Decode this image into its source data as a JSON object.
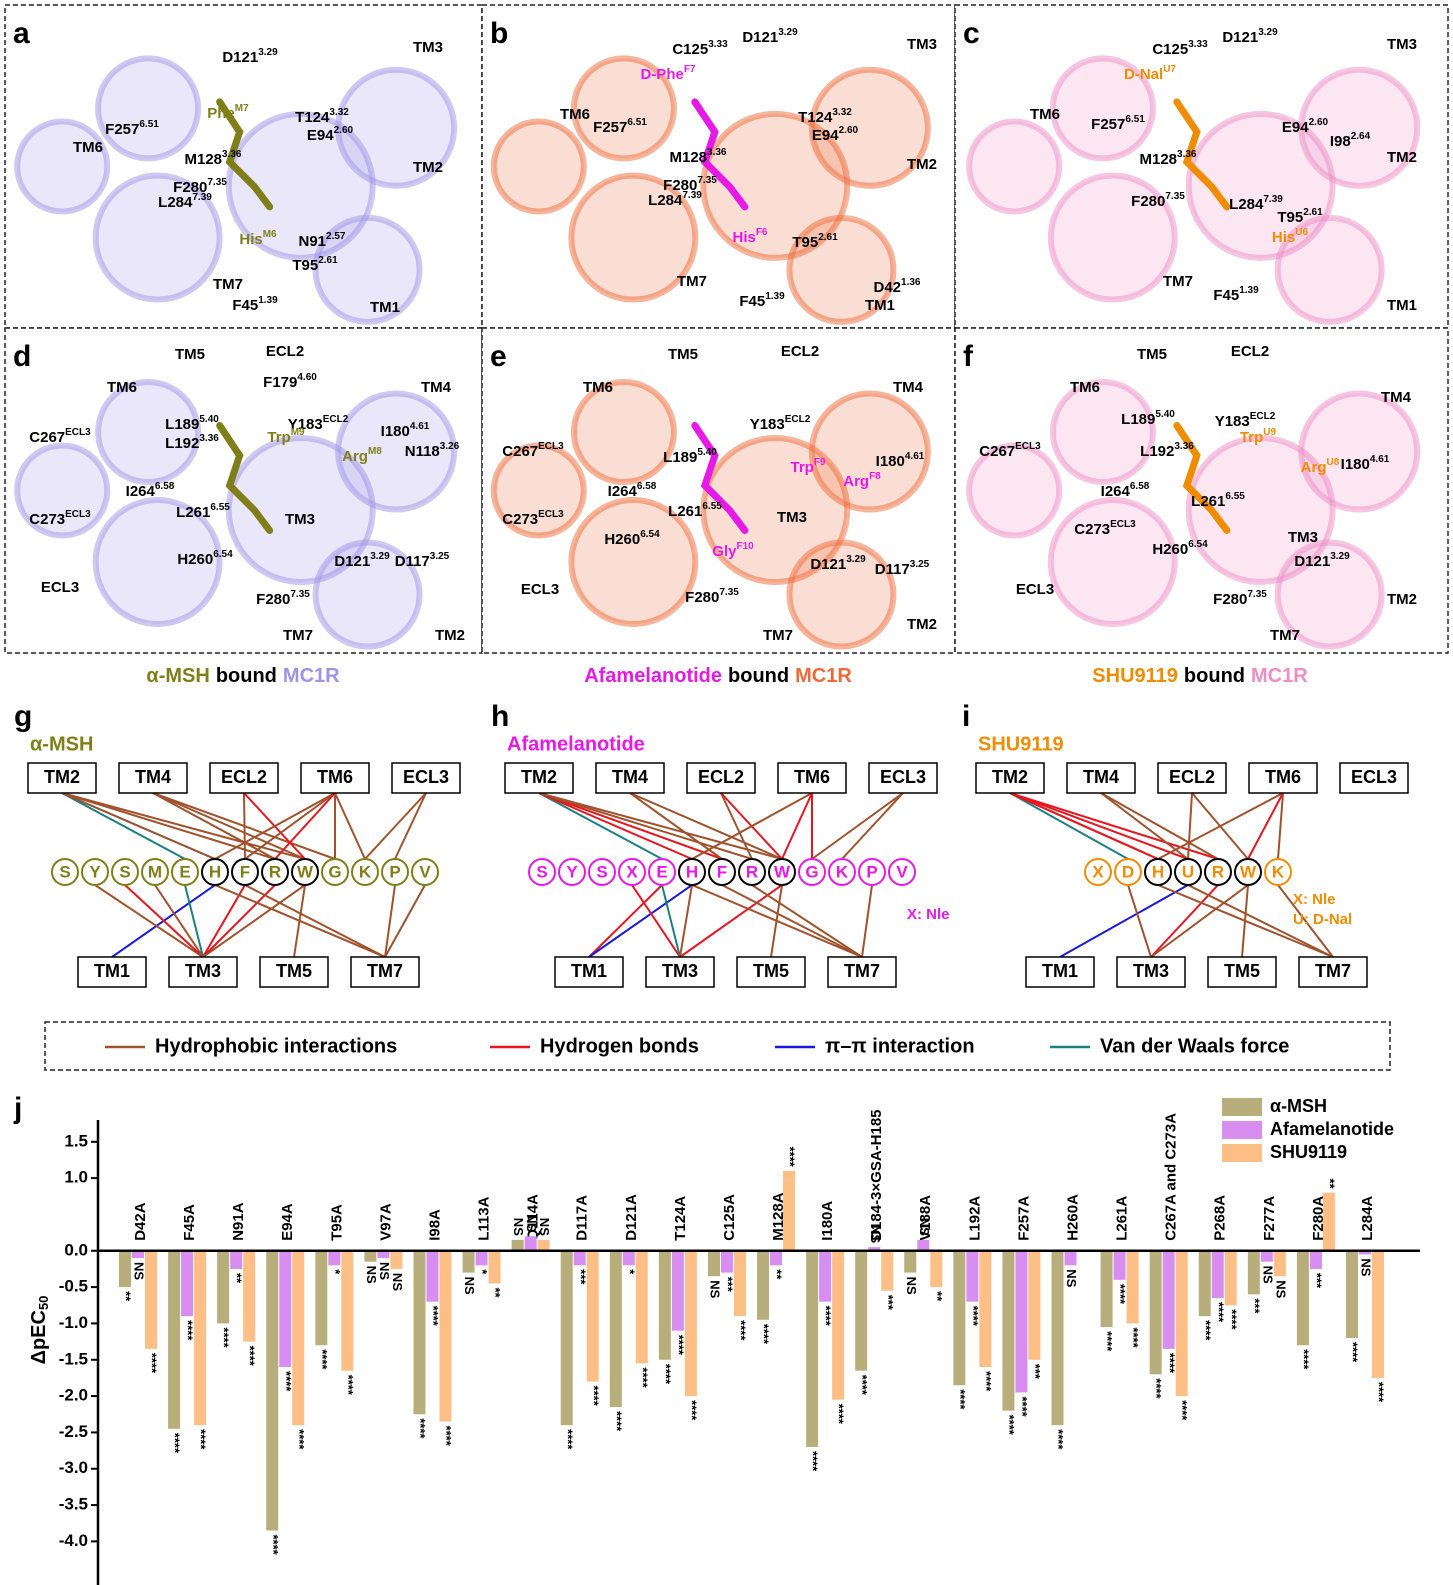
{
  "panels": [
    {
      "letter": "a",
      "ligand_color": "#7f7f1a",
      "receptor_color": "#9f93e6",
      "labels": [
        {
          "text": "TM6"
        },
        {
          "text": "TM3"
        },
        {
          "text": "TM2"
        },
        {
          "text": "TM7"
        },
        {
          "text": "TM1"
        },
        {
          "text": "D121",
          "sup": "3.29"
        },
        {
          "text": "Phe",
          "sup": "M7",
          "peptide": true
        },
        {
          "text": "T124",
          "sup": "3.32"
        },
        {
          "text": "F257",
          "sup": "6.51"
        },
        {
          "text": "E94",
          "sup": "2.60"
        },
        {
          "text": "M128",
          "sup": "3.36"
        },
        {
          "text": "F280",
          "sup": "7.35"
        },
        {
          "text": "L284",
          "sup": "7.39"
        },
        {
          "text": "His",
          "sup": "M6",
          "peptide": true
        },
        {
          "text": "N91",
          "sup": "2.57"
        },
        {
          "text": "T95",
          "sup": "2.61"
        },
        {
          "text": "F45",
          "sup": "1.39"
        }
      ]
    },
    {
      "letter": "b",
      "ligand_color": "#e619e6",
      "receptor_color": "#ee6a38",
      "labels": [
        {
          "text": "TM6"
        },
        {
          "text": "TM3"
        },
        {
          "text": "TM2"
        },
        {
          "text": "TM7"
        },
        {
          "text": "TM1"
        },
        {
          "text": "C125",
          "sup": "3.33"
        },
        {
          "text": "D121",
          "sup": "3.29"
        },
        {
          "text": "D-Phe",
          "sup": "F7",
          "peptide": true
        },
        {
          "text": "F257",
          "sup": "6.51"
        },
        {
          "text": "T124",
          "sup": "3.32"
        },
        {
          "text": "E94",
          "sup": "2.60"
        },
        {
          "text": "M128",
          "sup": "3.36"
        },
        {
          "text": "F280",
          "sup": "7.35"
        },
        {
          "text": "L284",
          "sup": "7.39"
        },
        {
          "text": "His",
          "sup": "F6",
          "peptide": true
        },
        {
          "text": "T95",
          "sup": "2.61"
        },
        {
          "text": "F45",
          "sup": "1.39"
        },
        {
          "text": "D42",
          "sup": "1.36"
        }
      ]
    },
    {
      "letter": "c",
      "ligand_color": "#f08c00",
      "receptor_color": "#ee8cc4",
      "labels": [
        {
          "text": "TM6"
        },
        {
          "text": "TM3"
        },
        {
          "text": "TM2"
        },
        {
          "text": "TM7"
        },
        {
          "text": "TM1"
        },
        {
          "text": "C125",
          "sup": "3.33"
        },
        {
          "text": "D121",
          "sup": "3.29"
        },
        {
          "text": "D-Nal",
          "sup": "U7",
          "peptide": true
        },
        {
          "text": "F257",
          "sup": "6.51"
        },
        {
          "text": "E94",
          "sup": "2.60"
        },
        {
          "text": "I98",
          "sup": "2.64"
        },
        {
          "text": "M128",
          "sup": "3.36"
        },
        {
          "text": "F280",
          "sup": "7.35"
        },
        {
          "text": "L284",
          "sup": "7.39"
        },
        {
          "text": "T95",
          "sup": "2.61"
        },
        {
          "text": "His",
          "sup": "U6",
          "peptide": true
        },
        {
          "text": "F45",
          "sup": "1.39"
        }
      ]
    },
    {
      "letter": "d",
      "ligand_color": "#7f7f1a",
      "receptor_color": "#9f93e6",
      "labels": [
        {
          "text": "TM5"
        },
        {
          "text": "ECL2"
        },
        {
          "text": "TM6"
        },
        {
          "text": "TM4"
        },
        {
          "text": "F179",
          "sup": "4.60"
        },
        {
          "text": "L189",
          "sup": "5.40"
        },
        {
          "text": "Y183",
          "sup": "ECL2"
        },
        {
          "text": "I180",
          "sup": "4.61"
        },
        {
          "text": "N118",
          "sup": "3.26"
        },
        {
          "text": "C267",
          "sup": "ECL3"
        },
        {
          "text": "L192",
          "sup": "3.36"
        },
        {
          "text": "Trp",
          "sup": "M9",
          "peptide": true
        },
        {
          "text": "Arg",
          "sup": "M8",
          "peptide": true
        },
        {
          "text": "I264",
          "sup": "6.58"
        },
        {
          "text": "L261",
          "sup": "6.55"
        },
        {
          "text": "C273",
          "sup": "ECL3"
        },
        {
          "text": "TM3"
        },
        {
          "text": "H260",
          "sup": "6.54"
        },
        {
          "text": "D121",
          "sup": "3.29"
        },
        {
          "text": "D117",
          "sup": "3.25"
        },
        {
          "text": "ECL3"
        },
        {
          "text": "F280",
          "sup": "7.35"
        },
        {
          "text": "TM7"
        },
        {
          "text": "TM2"
        }
      ]
    },
    {
      "letter": "e",
      "ligand_color": "#e619e6",
      "receptor_color": "#ee6a38",
      "labels": [
        {
          "text": "TM5"
        },
        {
          "text": "ECL2"
        },
        {
          "text": "TM6"
        },
        {
          "text": "TM4"
        },
        {
          "text": "Y183",
          "sup": "ECL2"
        },
        {
          "text": "L189",
          "sup": "5.40"
        },
        {
          "text": "I180",
          "sup": "4.61"
        },
        {
          "text": "C267",
          "sup": "ECL3"
        },
        {
          "text": "Trp",
          "sup": "F9",
          "peptide": true
        },
        {
          "text": "Arg",
          "sup": "F8",
          "peptide": true
        },
        {
          "text": "I264",
          "sup": "6.58"
        },
        {
          "text": "L261",
          "sup": "6.55"
        },
        {
          "text": "TM3"
        },
        {
          "text": "C273",
          "sup": "ECL3"
        },
        {
          "text": "H260",
          "sup": "6.54"
        },
        {
          "text": "Gly",
          "sup": "F10",
          "peptide": true
        },
        {
          "text": "D121",
          "sup": "3.29"
        },
        {
          "text": "D117",
          "sup": "3.25"
        },
        {
          "text": "ECL3"
        },
        {
          "text": "F280",
          "sup": "7.35"
        },
        {
          "text": "TM7"
        },
        {
          "text": "TM2"
        }
      ]
    },
    {
      "letter": "f",
      "ligand_color": "#f08c00",
      "receptor_color": "#ee8cc4",
      "labels": [
        {
          "text": "TM5"
        },
        {
          "text": "ECL2"
        },
        {
          "text": "TM6"
        },
        {
          "text": "TM4"
        },
        {
          "text": "Y183",
          "sup": "ECL2"
        },
        {
          "text": "L189",
          "sup": "5.40"
        },
        {
          "text": "Trp",
          "sup": "U9",
          "peptide": true
        },
        {
          "text": "L192",
          "sup": "3.36"
        },
        {
          "text": "I180",
          "sup": "4.61"
        },
        {
          "text": "C267",
          "sup": "ECL3"
        },
        {
          "text": "Arg",
          "sup": "U8",
          "peptide": true
        },
        {
          "text": "L261",
          "sup": "6.55"
        },
        {
          "text": "I264",
          "sup": "6.58"
        },
        {
          "text": "C273",
          "sup": "ECL3"
        },
        {
          "text": "TM3"
        },
        {
          "text": "D121",
          "sup": "3.29"
        },
        {
          "text": "H260",
          "sup": "6.54"
        },
        {
          "text": "ECL3"
        },
        {
          "text": "F280",
          "sup": "7.35"
        },
        {
          "text": "TM2"
        },
        {
          "text": "TM7"
        }
      ]
    }
  ],
  "captions": [
    [
      "α-MSH",
      "bound",
      "MC1R"
    ],
    [
      "Afamelanotide",
      "bound",
      "MC1R"
    ],
    [
      "SHU9119",
      "bound",
      "MC1R"
    ]
  ],
  "interaction_types": [
    {
      "label": "Hydrophobic interactions",
      "color": "#a0522d"
    },
    {
      "label": "Hydrogen bonds",
      "color": "#e8141e"
    },
    {
      "label": "π–π interaction",
      "color": "#1a1adc"
    },
    {
      "label": "Van der Waals force",
      "color": "#1a8080"
    }
  ],
  "networks": [
    {
      "letter": "g",
      "title": "α-MSH",
      "color": "#7f7f1a",
      "top": [
        "TM2",
        "TM4",
        "ECL2",
        "TM6",
        "ECL3"
      ],
      "bottom": [
        "TM1",
        "TM3",
        "TM5",
        "TM7"
      ],
      "residues": [
        "S",
        "Y",
        "S",
        "M",
        "E",
        "H",
        "F",
        "R",
        "W",
        "G",
        "K",
        "P",
        "V"
      ],
      "core": [
        5,
        6,
        7,
        8
      ],
      "notes": [],
      "top_edges": [
        [
          0,
          4,
          3
        ],
        [
          0,
          5,
          3
        ],
        [
          0,
          5,
          0
        ],
        [
          0,
          7,
          0
        ],
        [
          0,
          8,
          0
        ],
        [
          1,
          7,
          0
        ],
        [
          1,
          8,
          0
        ],
        [
          1,
          9,
          0
        ],
        [
          2,
          6,
          0
        ],
        [
          2,
          8,
          1
        ],
        [
          3,
          5,
          0
        ],
        [
          3,
          6,
          0
        ],
        [
          3,
          7,
          1
        ],
        [
          3,
          9,
          0
        ],
        [
          3,
          10,
          0
        ],
        [
          4,
          10,
          0
        ],
        [
          4,
          11,
          0
        ]
      ],
      "bottom_edges": [
        [
          0,
          5,
          2
        ],
        [
          1,
          1,
          0
        ],
        [
          1,
          2,
          1
        ],
        [
          1,
          3,
          0
        ],
        [
          1,
          4,
          3
        ],
        [
          1,
          6,
          1
        ],
        [
          1,
          7,
          1
        ],
        [
          1,
          8,
          0
        ],
        [
          2,
          8,
          0
        ],
        [
          3,
          5,
          0
        ],
        [
          3,
          6,
          0
        ],
        [
          3,
          11,
          0
        ],
        [
          3,
          12,
          0
        ]
      ]
    },
    {
      "letter": "h",
      "title": "Afamelanotide",
      "color": "#e619e6",
      "top": [
        "TM2",
        "TM4",
        "ECL2",
        "TM6",
        "ECL3"
      ],
      "bottom": [
        "TM1",
        "TM3",
        "TM5",
        "TM7"
      ],
      "residues": [
        "S",
        "Y",
        "S",
        "X",
        "E",
        "H",
        "F",
        "R",
        "W",
        "G",
        "K",
        "P",
        "V"
      ],
      "core": [
        5,
        6,
        7,
        8
      ],
      "notes": [
        "X: Nle"
      ],
      "top_edges": [
        [
          0,
          4,
          3
        ],
        [
          0,
          5,
          1
        ],
        [
          0,
          6,
          1
        ],
        [
          0,
          7,
          0
        ],
        [
          0,
          8,
          0
        ],
        [
          1,
          6,
          0
        ],
        [
          1,
          8,
          0
        ],
        [
          2,
          7,
          0
        ],
        [
          2,
          8,
          1
        ],
        [
          3,
          5,
          0
        ],
        [
          3,
          8,
          1
        ],
        [
          3,
          9,
          1
        ],
        [
          4,
          9,
          0
        ],
        [
          4,
          10,
          0
        ]
      ],
      "bottom_edges": [
        [
          0,
          4,
          1
        ],
        [
          0,
          5,
          2
        ],
        [
          1,
          3,
          1
        ],
        [
          1,
          4,
          3
        ],
        [
          1,
          5,
          0
        ],
        [
          1,
          8,
          1
        ],
        [
          2,
          8,
          0
        ],
        [
          3,
          5,
          0
        ],
        [
          3,
          6,
          0
        ],
        [
          3,
          7,
          0
        ],
        [
          3,
          11,
          0
        ]
      ]
    },
    {
      "letter": "i",
      "title": "SHU9119",
      "color": "#f08c00",
      "top": [
        "TM2",
        "TM4",
        "ECL2",
        "TM6",
        "ECL3"
      ],
      "bottom": [
        "TM1",
        "TM3",
        "TM5",
        "TM7"
      ],
      "residues": [
        "X",
        "D",
        "H",
        "U",
        "R",
        "W",
        "K"
      ],
      "core": [
        2,
        3,
        4,
        5
      ],
      "notes": [
        "X: Nle",
        "U: D-Nal"
      ],
      "top_edges": [
        [
          0,
          1,
          3
        ],
        [
          0,
          2,
          0
        ],
        [
          0,
          2,
          1
        ],
        [
          0,
          3,
          1
        ],
        [
          0,
          4,
          1
        ],
        [
          1,
          3,
          0
        ],
        [
          1,
          4,
          0
        ],
        [
          2,
          3,
          0
        ],
        [
          2,
          5,
          0
        ],
        [
          3,
          2,
          0
        ],
        [
          3,
          5,
          1
        ],
        [
          3,
          6,
          0
        ]
      ],
      "bottom_edges": [
        [
          0,
          3,
          2
        ],
        [
          1,
          1,
          0
        ],
        [
          1,
          4,
          1
        ],
        [
          1,
          5,
          0
        ],
        [
          2,
          5,
          0
        ],
        [
          3,
          2,
          0
        ],
        [
          3,
          3,
          0
        ],
        [
          3,
          6,
          0
        ]
      ]
    }
  ],
  "chart_data": {
    "type": "bar",
    "panel_label": "j",
    "y_label": "ΔpEC",
    "y_label_sub": "50",
    "categories": [
      "D42A",
      "F45A",
      "N91A",
      "E94A",
      "T95A",
      "V97A",
      "I98A",
      "L113A",
      "Q114A",
      "D117A",
      "D121A",
      "T124A",
      "C125A",
      "M128A",
      "I180A",
      "D184-3×GSA-H185",
      "V188A",
      "L192A",
      "F257A",
      "H260A",
      "L261A",
      "C267A and C273A",
      "P268A",
      "F277A",
      "F280A",
      "L284A"
    ],
    "series": [
      {
        "name": "α-MSH",
        "color": "#b8ae7c",
        "values": [
          -0.5,
          -2.45,
          -1.0,
          -3.85,
          -1.3,
          -0.15,
          -2.25,
          -0.3,
          0.15,
          -2.4,
          -2.15,
          -1.5,
          -0.35,
          -0.95,
          -2.7,
          -1.65,
          -0.3,
          -1.85,
          -2.2,
          -2.4,
          -1.05,
          -1.7,
          -0.9,
          -0.6,
          -1.3,
          -1.2
        ],
        "significance": [
          "**",
          "****",
          "****",
          "****",
          "****",
          "NS",
          "****",
          "NS",
          "NS",
          "****",
          "****",
          "****",
          "NS",
          "****",
          "****",
          "****",
          "NS",
          "****",
          "****",
          "****",
          "****",
          "****",
          "****",
          "***",
          "****",
          "****"
        ]
      },
      {
        "name": "Afamelanotide",
        "color": "#d88ef0",
        "values": [
          -0.1,
          -0.9,
          -0.25,
          -1.6,
          -0.2,
          -0.1,
          -0.7,
          -0.2,
          0.2,
          -0.2,
          -0.2,
          -1.1,
          -0.3,
          -0.2,
          -0.7,
          0.05,
          0.15,
          -0.7,
          -1.95,
          -0.2,
          -0.4,
          -1.35,
          -0.65,
          -0.15,
          -0.25,
          -0.05
        ],
        "significance": [
          "NS",
          "****",
          "**",
          "****",
          "*",
          "NS",
          "****",
          "*",
          "NS",
          "***",
          "*",
          "****",
          "***",
          "**",
          "****",
          "NS",
          "NS",
          "****",
          "****",
          "NS",
          "****",
          "****",
          "****",
          "NS",
          "***",
          "NS"
        ]
      },
      {
        "name": "SHU9119",
        "color": "#fdbf86",
        "values": [
          -1.35,
          -2.4,
          -1.25,
          -2.4,
          -1.65,
          -0.25,
          -2.35,
          -0.45,
          0.15,
          -1.8,
          -1.55,
          -2.0,
          -0.9,
          1.1,
          -2.05,
          -0.55,
          -0.5,
          -1.6,
          -1.5,
          null,
          -1.0,
          -2.0,
          -0.75,
          -0.35,
          0.8,
          -1.75
        ],
        "significance": [
          "****",
          "****",
          "****",
          "****",
          "****",
          "NS",
          "****",
          "**",
          "NS",
          "****",
          "****",
          "****",
          "****",
          "****",
          "****",
          "***",
          "**",
          "****",
          "***",
          null,
          "****",
          "****",
          "****",
          "NS",
          "**",
          "****"
        ]
      }
    ],
    "ylim": [
      -4.6,
      1.8
    ],
    "yticks": [
      1.5,
      {
        "value": 1,
        "label": "1.0"
      },
      {
        "value": 0,
        "label": "0.0"
      },
      -0.5,
      {
        "value": -1,
        "label": "-1.0"
      },
      -1.5,
      {
        "value": -2,
        "label": "-2.0"
      },
      -2.5,
      {
        "value": -3,
        "label": "-3.0"
      },
      -3.5,
      {
        "value": -4,
        "label": "-4.0"
      }
    ]
  }
}
